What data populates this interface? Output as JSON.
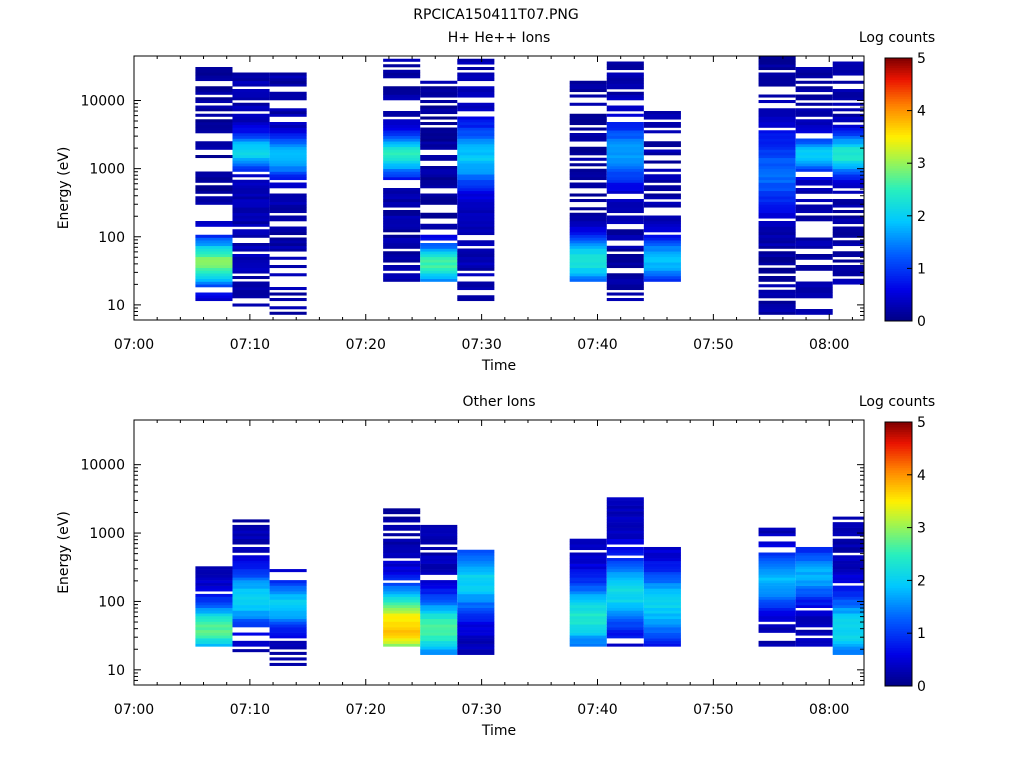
{
  "figure_title": "RPCICA150411T07.PNG",
  "colorbar": {
    "label": "Log counts",
    "min": 0,
    "max": 5,
    "ticks": [
      "0",
      "1",
      "2",
      "3",
      "4",
      "5"
    ]
  },
  "chart_data": [
    {
      "type": "heatmap",
      "title": "H+ He++ Ions",
      "xlabel": "Time",
      "ylabel": "Energy (eV)",
      "x_ticks": [
        "07:00",
        "07:10",
        "07:20",
        "07:30",
        "07:40",
        "07:50",
        "08:00"
      ],
      "y_ticks": [
        "10",
        "100",
        "1000",
        "10000"
      ],
      "y_scale": "log",
      "ylim": [
        6,
        45000
      ],
      "xlim_minutes_after_0700": [
        0,
        63
      ],
      "colorbar_label": "Log counts",
      "colorbar_range": [
        0,
        5
      ],
      "blocks": [
        {
          "t0": 5.3,
          "t1": 8.5,
          "sweep": "up",
          "lo_e": 11,
          "hi_e": 42000,
          "peak": 2.9,
          "peak_e": 42,
          "spread": 0.35,
          "floor": 0.12,
          "density": 0.55,
          "edge": 0.4
        },
        {
          "t0": 8.5,
          "t1": 11.7,
          "sweep": "down",
          "lo_e": 7,
          "hi_e": 32000,
          "peak": 2.1,
          "peak_e": 1800,
          "spread": 0.25,
          "floor": 0.25,
          "density": 0.72,
          "edge": 0.3
        },
        {
          "t0": 11.7,
          "t1": 14.9,
          "sweep": "up",
          "lo_e": 7,
          "hi_e": 25000,
          "peak": 1.9,
          "peak_e": 1500,
          "spread": 0.3,
          "floor": 0.2,
          "density": 0.5,
          "edge": 0.6
        },
        {
          "t0": 21.5,
          "t1": 24.7,
          "sweep": "up",
          "lo_e": 22,
          "hi_e": 45000,
          "peak": 2.4,
          "peak_e": 1600,
          "spread": 0.3,
          "floor": 0.2,
          "density": 0.78,
          "edge": 0.5
        },
        {
          "t0": 24.7,
          "t1": 27.9,
          "sweep": "down",
          "lo_e": 22,
          "hi_e": 20000,
          "peak": 2.6,
          "peak_e": 40,
          "spread": 0.3,
          "floor": 0.15,
          "density": 0.65,
          "edge": 0.5
        },
        {
          "t0": 27.9,
          "t1": 31.1,
          "sweep": "up",
          "lo_e": 11,
          "hi_e": 42000,
          "peak": 1.9,
          "peak_e": 1500,
          "spread": 0.45,
          "floor": 0.25,
          "density": 0.75,
          "edge": 0.4
        },
        {
          "t0": 37.6,
          "t1": 40.8,
          "sweep": "up",
          "lo_e": 22,
          "hi_e": 20000,
          "peak": 2.3,
          "peak_e": 45,
          "spread": 0.35,
          "floor": 0.12,
          "density": 0.6,
          "edge": 0.6
        },
        {
          "t0": 40.8,
          "t1": 44.0,
          "sweep": "down",
          "lo_e": 11,
          "hi_e": 42000,
          "peak": 1.6,
          "peak_e": 1700,
          "spread": 0.45,
          "floor": 0.2,
          "density": 0.72,
          "edge": 0.35
        },
        {
          "t0": 44.0,
          "t1": 47.2,
          "sweep": "up",
          "lo_e": 22,
          "hi_e": 9000,
          "peak": 1.8,
          "peak_e": 45,
          "spread": 0.35,
          "floor": 0.2,
          "density": 0.6,
          "edge": 0.5
        },
        {
          "t0": 53.9,
          "t1": 57.1,
          "sweep": "up",
          "lo_e": 7,
          "hi_e": 45000,
          "peak": 1.3,
          "peak_e": 900,
          "spread": 0.6,
          "floor": 0.15,
          "density": 0.85,
          "edge": 0.5
        },
        {
          "t0": 57.1,
          "t1": 60.3,
          "sweep": "down",
          "lo_e": 7,
          "hi_e": 30000,
          "peak": 2.0,
          "peak_e": 1600,
          "spread": 0.25,
          "floor": 0.2,
          "density": 0.55,
          "edge": 0.5
        },
        {
          "t0": 60.3,
          "t1": 63.0,
          "sweep": "up",
          "lo_e": 18,
          "hi_e": 40000,
          "peak": 2.4,
          "peak_e": 1600,
          "spread": 0.3,
          "floor": 0.2,
          "density": 0.72,
          "edge": 0.5
        }
      ]
    },
    {
      "type": "heatmap",
      "title": "Other Ions",
      "xlabel": "Time",
      "ylabel": "Energy (eV)",
      "x_ticks": [
        "07:00",
        "07:10",
        "07:20",
        "07:30",
        "07:40",
        "07:50",
        "08:00"
      ],
      "y_ticks": [
        "10",
        "100",
        "1000",
        "10000"
      ],
      "y_scale": "log",
      "ylim": [
        6,
        45000
      ],
      "xlim_minutes_after_0700": [
        0,
        63
      ],
      "colorbar_label": "Log counts",
      "colorbar_range": [
        0,
        5
      ],
      "blocks": [
        {
          "t0": 5.3,
          "t1": 8.5,
          "sweep": "up",
          "lo_e": 22,
          "hi_e": 330,
          "peak": 2.7,
          "peak_e": 40,
          "spread": 0.35,
          "floor": 0.35,
          "density": 0.95,
          "edge": 0.2
        },
        {
          "t0": 8.5,
          "t1": 11.7,
          "sweep": "down",
          "lo_e": 17,
          "hi_e": 1600,
          "peak": 2.1,
          "peak_e": 110,
          "spread": 0.4,
          "floor": 0.25,
          "density": 0.8,
          "edge": 0.6
        },
        {
          "t0": 11.7,
          "t1": 14.9,
          "sweep": "up",
          "lo_e": 11,
          "hi_e": 290,
          "peak": 2.0,
          "peak_e": 90,
          "spread": 0.35,
          "floor": 0.2,
          "density": 0.8,
          "edge": 0.4
        },
        {
          "t0": 21.5,
          "t1": 24.7,
          "sweep": "up",
          "lo_e": 22,
          "hi_e": 2900,
          "peak": 3.7,
          "peak_e": 42,
          "spread": 0.55,
          "floor": 0.2,
          "density": 0.95,
          "edge": 0.4
        },
        {
          "t0": 24.7,
          "t1": 27.9,
          "sweep": "down",
          "lo_e": 17,
          "hi_e": 1300,
          "peak": 2.6,
          "peak_e": 40,
          "spread": 0.45,
          "floor": 0.25,
          "density": 0.9,
          "edge": 0.4
        },
        {
          "t0": 27.9,
          "t1": 31.1,
          "sweep": "up",
          "lo_e": 17,
          "hi_e": 580,
          "peak": 2.0,
          "peak_e": 200,
          "spread": 0.5,
          "floor": 0.25,
          "density": 0.85,
          "edge": 0.3
        },
        {
          "t0": 37.6,
          "t1": 40.8,
          "sweep": "up",
          "lo_e": 22,
          "hi_e": 820,
          "peak": 2.3,
          "peak_e": 60,
          "spread": 0.5,
          "floor": 0.3,
          "density": 0.95,
          "edge": 0.2
        },
        {
          "t0": 40.8,
          "t1": 44.0,
          "sweep": "down",
          "lo_e": 22,
          "hi_e": 3200,
          "peak": 2.1,
          "peak_e": 130,
          "spread": 0.5,
          "floor": 0.3,
          "density": 0.85,
          "edge": 0.5
        },
        {
          "t0": 44.0,
          "t1": 47.2,
          "sweep": "up",
          "lo_e": 22,
          "hi_e": 620,
          "peak": 2.0,
          "peak_e": 90,
          "spread": 0.5,
          "floor": 0.3,
          "density": 0.9,
          "edge": 0.3
        },
        {
          "t0": 53.9,
          "t1": 57.1,
          "sweep": "up",
          "lo_e": 22,
          "hi_e": 1250,
          "peak": 1.8,
          "peak_e": 200,
          "spread": 0.4,
          "floor": 0.25,
          "density": 0.8,
          "edge": 0.6
        },
        {
          "t0": 57.1,
          "t1": 60.3,
          "sweep": "down",
          "lo_e": 22,
          "hi_e": 650,
          "peak": 1.7,
          "peak_e": 250,
          "spread": 0.4,
          "floor": 0.25,
          "density": 0.8,
          "edge": 0.4
        },
        {
          "t0": 60.3,
          "t1": 63.0,
          "sweep": "up",
          "lo_e": 17,
          "hi_e": 1800,
          "peak": 2.1,
          "peak_e": 40,
          "spread": 0.5,
          "floor": 0.25,
          "density": 0.9,
          "edge": 0.4
        }
      ]
    }
  ]
}
